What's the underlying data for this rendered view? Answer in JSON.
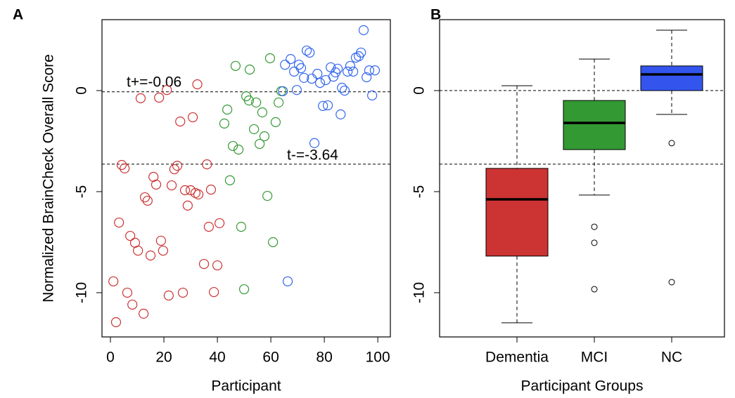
{
  "chart_data": [
    {
      "type": "scatter",
      "panel": "A",
      "xlabel": "Participant",
      "ylabel": "Normalized BrainCheck Overall Score",
      "xlim": [
        -3.16,
        104.7
      ],
      "ylim": [
        -12.19,
        3.51
      ],
      "xticks": [
        0,
        20,
        40,
        60,
        80,
        100
      ],
      "yticks": [
        -10,
        -5,
        0
      ],
      "hlines": [
        {
          "value": -0.06,
          "label": "t+=-0.06"
        },
        {
          "value": -3.64,
          "label": "t-=-3.64"
        }
      ],
      "series": [
        {
          "color": "#cc3333",
          "x": [
            1.1,
            2.1,
            3.2,
            4.2,
            5.3,
            6.3,
            7.4,
            8.2,
            9.2,
            10.3,
            11.3,
            12.4,
            12.9,
            13.9,
            15.0,
            16.1,
            17.1,
            18.2,
            18.9,
            19.7,
            21.1,
            21.8,
            22.9,
            23.9,
            25.0,
            26.1,
            27.1,
            27.9,
            28.9,
            30.0,
            30.8,
            31.8,
            32.5,
            32.9,
            35.0,
            36.1,
            36.8,
            37.6,
            38.7,
            40.0,
            40.8
          ],
          "values": [
            -9.44,
            -11.46,
            -6.53,
            -3.68,
            -3.85,
            -10.0,
            -7.19,
            -10.59,
            -7.53,
            -7.92,
            -0.38,
            -11.04,
            -5.28,
            -5.45,
            -8.16,
            -4.27,
            -4.65,
            -0.35,
            -7.43,
            -7.92,
            0.03,
            -10.14,
            -4.69,
            -3.89,
            -3.72,
            -1.53,
            -10.0,
            -4.93,
            -5.69,
            -4.93,
            -1.32,
            -5.07,
            0.31,
            -5.14,
            -8.58,
            -3.65,
            -6.74,
            -4.9,
            -9.97,
            -8.65,
            -6.56
          ]
        },
        {
          "color": "#339933",
          "x": [
            42.6,
            43.7,
            44.7,
            45.8,
            46.8,
            47.9,
            48.9,
            50.0,
            50.8,
            51.8,
            52.1,
            53.7,
            54.5,
            55.8,
            56.8,
            57.6,
            58.7,
            59.7,
            60.8,
            61.8,
            62.9,
            63.9
          ],
          "values": [
            -1.63,
            -0.94,
            -4.44,
            -2.74,
            1.22,
            -2.92,
            -6.74,
            -9.83,
            -0.28,
            -0.49,
            1.04,
            -1.91,
            -0.59,
            -2.64,
            -1.08,
            -2.26,
            -5.21,
            1.6,
            -7.5,
            -1.56,
            -0.59,
            -0.03
          ]
        },
        {
          "color": "#3366ee",
          "x": [
            64.5,
            65.3,
            66.3,
            67.4,
            68.7,
            69.7,
            70.5,
            71.3,
            72.4,
            73.4,
            74.5,
            75.3,
            76.3,
            77.4,
            78.4,
            79.5,
            80.5,
            81.3,
            82.4,
            83.4,
            84.2,
            85.0,
            86.1,
            86.6,
            87.6,
            88.7,
            89.7,
            90.8,
            91.8,
            92.9,
            93.7,
            94.7,
            95.8,
            96.8,
            97.9,
            98.9
          ],
          "values": [
            -0.03,
            1.28,
            -9.44,
            1.56,
            0.94,
            0.03,
            1.28,
            1.11,
            0.63,
            1.98,
            1.88,
            0.59,
            -2.6,
            0.83,
            0.38,
            -0.76,
            0.52,
            -0.73,
            1.15,
            0.69,
            0.9,
            1.08,
            -1.18,
            0.14,
            0,
            0.94,
            1.22,
            0.94,
            1.63,
            1.7,
            1.88,
            2.99,
            0.66,
            1.0,
            -0.24,
            1.0
          ]
        }
      ]
    },
    {
      "type": "box",
      "panel": "B",
      "xlabel": "Participant Groups",
      "ylim": [
        -12.19,
        3.51
      ],
      "yticks": [
        -10,
        -5,
        0
      ],
      "hlines": [
        0,
        -3.64
      ],
      "categories": [
        "Dementia",
        "MCI",
        "NC"
      ],
      "colors": [
        "#cc3333",
        "#339933",
        "#3355ee"
      ],
      "boxes": [
        {
          "whislo": -11.49,
          "q1": -8.19,
          "med": -5.38,
          "q3": -3.85,
          "whishi": 0.24,
          "fliers": []
        },
        {
          "whislo": -5.17,
          "q1": -2.92,
          "med": -1.6,
          "q3": -0.49,
          "whishi": 1.56,
          "fliers": [
            -6.74,
            -7.53,
            -9.83
          ]
        },
        {
          "whislo": -1.18,
          "q1": 0,
          "med": 0.8,
          "q3": 1.22,
          "whishi": 2.99,
          "fliers": [
            -2.6,
            -9.48
          ]
        }
      ]
    }
  ]
}
